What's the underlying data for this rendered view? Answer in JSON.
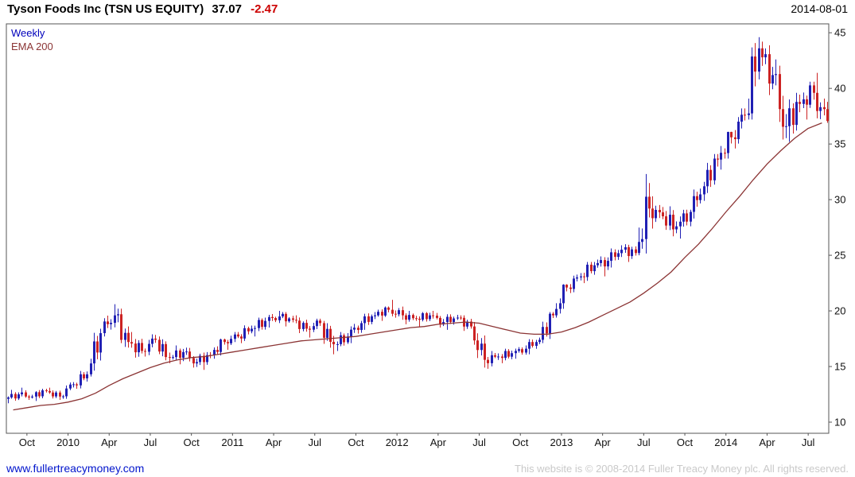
{
  "header": {
    "title": "Tyson Foods Inc (TSN US EQUITY)",
    "price": "37.07",
    "change": "-2.47",
    "date": "2014-08-01"
  },
  "legend": {
    "series_label": "Weekly",
    "ema_label": "EMA 200"
  },
  "footer": {
    "link": "www.fullertreacymoney.com",
    "copyright": "This website is © 2008-2014 Fuller Treacy Money plc. All rights reserved."
  },
  "chart_data": {
    "type": "candlestick",
    "title": "Tyson Foods Inc (TSN US EQUITY)",
    "interval": "Weekly",
    "overlay": "EMA 200",
    "last_price": 37.07,
    "change": -2.47,
    "date": "2014-08-01",
    "ylim": [
      9,
      45.8
    ],
    "y_ticks": [
      10,
      15,
      20,
      25,
      30,
      35,
      40,
      45
    ],
    "grid": false,
    "legend_position": "top-left",
    "colors": {
      "up": "#2020b4",
      "down": "#cc2222",
      "ema": "#8b3434"
    },
    "columns": [
      "month",
      "open",
      "high",
      "low",
      "close",
      "ema200"
    ],
    "months": [
      [
        "2009-09",
        12.1,
        12.9,
        11.7,
        12.5,
        11.1
      ],
      [
        "2009-10",
        12.5,
        13.1,
        12.0,
        12.3,
        11.3
      ],
      [
        "2009-11",
        12.3,
        13.0,
        11.9,
        12.8,
        11.5
      ],
      [
        "2009-12",
        12.8,
        13.1,
        12.0,
        12.3,
        11.6
      ],
      [
        "2010-01",
        12.3,
        13.6,
        12.1,
        13.4,
        11.8
      ],
      [
        "2010-02",
        13.4,
        14.6,
        13.0,
        14.3,
        12.1
      ],
      [
        "2010-03",
        14.3,
        18.4,
        14.1,
        18.0,
        12.6
      ],
      [
        "2010-04",
        18.0,
        20.6,
        17.7,
        19.6,
        13.3
      ],
      [
        "2010-05",
        19.6,
        20.2,
        16.7,
        17.2,
        13.9
      ],
      [
        "2010-06",
        17.2,
        18.1,
        15.8,
        16.4,
        14.4
      ],
      [
        "2010-07",
        16.4,
        17.9,
        15.9,
        17.4,
        14.9
      ],
      [
        "2010-08",
        17.4,
        17.7,
        15.3,
        15.8,
        15.3
      ],
      [
        "2010-09",
        15.8,
        16.9,
        15.2,
        16.3,
        15.6
      ],
      [
        "2010-10",
        16.3,
        16.7,
        14.9,
        15.4,
        15.8
      ],
      [
        "2010-11",
        15.4,
        16.3,
        14.7,
        16.0,
        15.9
      ],
      [
        "2010-12",
        16.0,
        17.5,
        15.7,
        17.2,
        16.1
      ],
      [
        "2011-01",
        17.2,
        18.1,
        16.5,
        17.7,
        16.3
      ],
      [
        "2011-02",
        17.7,
        18.7,
        17.1,
        18.4,
        16.5
      ],
      [
        "2011-03",
        18.4,
        19.4,
        17.7,
        19.1,
        16.7
      ],
      [
        "2011-04",
        19.1,
        20.0,
        18.5,
        19.5,
        16.9
      ],
      [
        "2011-05",
        19.5,
        19.9,
        18.6,
        19.2,
        17.1
      ],
      [
        "2011-06",
        19.2,
        19.6,
        18.0,
        18.4,
        17.3
      ],
      [
        "2011-07",
        18.4,
        19.3,
        17.6,
        18.9,
        17.4
      ],
      [
        "2011-08",
        18.9,
        19.1,
        16.1,
        17.0,
        17.5
      ],
      [
        "2011-09",
        17.0,
        18.1,
        16.4,
        17.7,
        17.6
      ],
      [
        "2011-10",
        17.7,
        19.1,
        17.1,
        18.9,
        17.7
      ],
      [
        "2011-11",
        18.9,
        19.9,
        18.3,
        19.6,
        17.9
      ],
      [
        "2011-12",
        19.6,
        20.4,
        19.1,
        20.1,
        18.1
      ],
      [
        "2012-01",
        20.1,
        21.0,
        19.2,
        19.6,
        18.3
      ],
      [
        "2012-02",
        19.6,
        20.0,
        18.8,
        19.3,
        18.5
      ],
      [
        "2012-03",
        19.3,
        19.9,
        18.6,
        19.6,
        18.6
      ],
      [
        "2012-04",
        19.6,
        20.0,
        18.5,
        19.0,
        18.8
      ],
      [
        "2012-05",
        19.0,
        19.7,
        18.3,
        19.4,
        18.9
      ],
      [
        "2012-06",
        19.4,
        19.6,
        18.2,
        18.6,
        19.0
      ],
      [
        "2012-07",
        18.6,
        19.0,
        14.9,
        15.6,
        18.9
      ],
      [
        "2012-08",
        15.6,
        16.4,
        14.8,
        15.9,
        18.6
      ],
      [
        "2012-09",
        15.9,
        16.6,
        15.3,
        16.2,
        18.3
      ],
      [
        "2012-10",
        16.2,
        16.9,
        15.7,
        16.6,
        18.0
      ],
      [
        "2012-11",
        16.6,
        17.6,
        16.1,
        17.4,
        17.9
      ],
      [
        "2012-12",
        17.4,
        19.9,
        17.1,
        19.6,
        17.9
      ],
      [
        "2013-01",
        19.6,
        22.4,
        19.4,
        22.1,
        18.1
      ],
      [
        "2013-02",
        22.1,
        23.4,
        21.6,
        23.1,
        18.5
      ],
      [
        "2013-03",
        23.1,
        24.4,
        22.5,
        24.1,
        19.0
      ],
      [
        "2013-04",
        24.1,
        24.9,
        23.1,
        24.5,
        19.6
      ],
      [
        "2013-05",
        24.5,
        25.9,
        23.9,
        25.5,
        20.2
      ],
      [
        "2013-06",
        25.5,
        26.0,
        24.4,
        25.2,
        20.8
      ],
      [
        "2013-07",
        25.2,
        32.3,
        25.0,
        29.2,
        21.6
      ],
      [
        "2013-08",
        29.2,
        30.3,
        27.4,
        28.5,
        22.5
      ],
      [
        "2013-09",
        28.5,
        29.4,
        26.7,
        27.6,
        23.5
      ],
      [
        "2013-10",
        27.6,
        29.1,
        26.5,
        28.9,
        24.8
      ],
      [
        "2013-11",
        28.9,
        31.6,
        28.3,
        31.2,
        26.0
      ],
      [
        "2013-12",
        31.2,
        34.1,
        30.6,
        33.6,
        27.4
      ],
      [
        "2014-01",
        33.6,
        36.1,
        32.7,
        35.6,
        28.9
      ],
      [
        "2014-02",
        35.6,
        38.2,
        34.6,
        37.6,
        30.3
      ],
      [
        "2014-03",
        37.6,
        44.6,
        37.2,
        43.6,
        31.8
      ],
      [
        "2014-04",
        43.6,
        44.2,
        39.4,
        41.2,
        33.2
      ],
      [
        "2014-05",
        41.2,
        42.6,
        35.4,
        36.6,
        34.4
      ],
      [
        "2014-06",
        36.6,
        39.6,
        35.2,
        38.6,
        35.5
      ],
      [
        "2014-07",
        38.6,
        40.6,
        37.2,
        39.6,
        36.4
      ],
      [
        "2014-08",
        39.6,
        41.4,
        36.9,
        37.07,
        36.9
      ]
    ],
    "x_ticks": [
      {
        "label": "Oct",
        "i": 1
      },
      {
        "label": "2010",
        "i": 4
      },
      {
        "label": "Apr",
        "i": 7
      },
      {
        "label": "Jul",
        "i": 10
      },
      {
        "label": "Oct",
        "i": 13
      },
      {
        "label": "2011",
        "i": 16
      },
      {
        "label": "Apr",
        "i": 19
      },
      {
        "label": "Jul",
        "i": 22
      },
      {
        "label": "Oct",
        "i": 25
      },
      {
        "label": "2012",
        "i": 28
      },
      {
        "label": "Apr",
        "i": 31
      },
      {
        "label": "Jul",
        "i": 34
      },
      {
        "label": "Oct",
        "i": 37
      },
      {
        "label": "2013",
        "i": 40
      },
      {
        "label": "Apr",
        "i": 43
      },
      {
        "label": "Jul",
        "i": 46
      },
      {
        "label": "Oct",
        "i": 49
      },
      {
        "label": "2014",
        "i": 52
      },
      {
        "label": "Apr",
        "i": 55
      },
      {
        "label": "Jul",
        "i": 58
      }
    ]
  }
}
